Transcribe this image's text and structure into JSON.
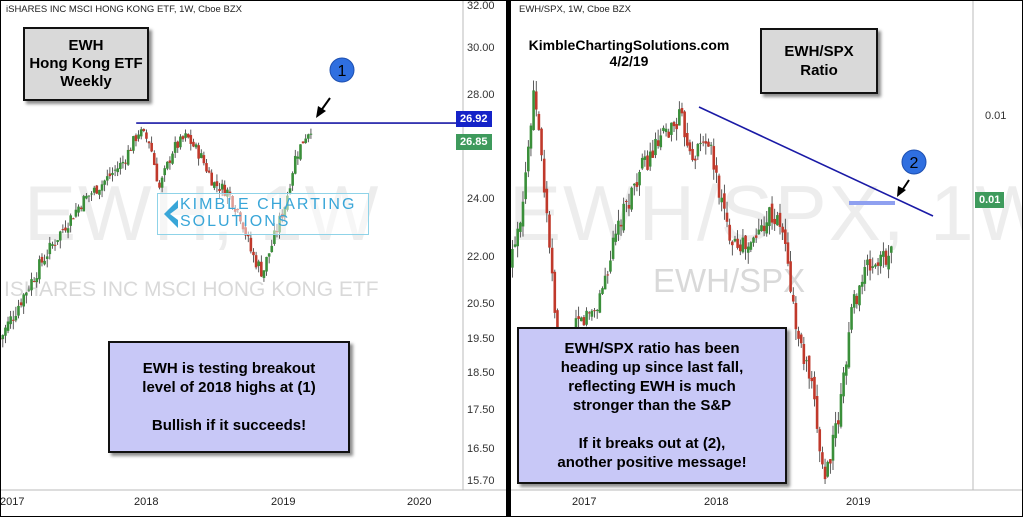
{
  "left": {
    "header": "iSHARES INC MSCI HONG KONG ETF, 1W, Cboe BZX",
    "watermark": "EWH, 1W",
    "watermark_sub": "ISHARES INC MSCI HONG KONG ETF",
    "title_box": [
      "EWH",
      "Hong Kong ETF",
      "Weekly"
    ],
    "logo_line1": "KIMBLE CHARTING",
    "logo_line2": "SOLUTIONS",
    "note": [
      "EWH is testing breakout",
      "level of 2018 highs at (1)",
      "",
      "Bullish if it succeeds!"
    ],
    "marker": "1",
    "price_badge_blue": "26.92",
    "price_badge_green": "26.85",
    "y_ticks": [
      "32.00",
      "30.00",
      "28.00",
      "24.00",
      "22.00",
      "20.50",
      "19.50",
      "18.50",
      "17.50",
      "16.50",
      "15.70"
    ],
    "x_ticks": [
      "2017",
      "2018",
      "2019",
      "2020"
    ]
  },
  "right": {
    "header": "EWH/SPX, 1W, Cboe BZX",
    "byline": [
      "KimbleChartingSolutions.com",
      "4/2/19"
    ],
    "watermark": "EWH/SPX, 1W",
    "watermark_mid": "EWH/SPX",
    "title_box": [
      "EWH/SPX",
      "Ratio"
    ],
    "note": [
      "EWH/SPX ratio has been",
      "heading up since last fall,",
      "reflecting EWH is much",
      "stronger than the S&P",
      "",
      "If it breaks out at (2),",
      "another positive message!"
    ],
    "marker": "2",
    "price_badge_green": "0.01",
    "y_ticks": [
      "0.01"
    ],
    "x_ticks": [
      "2017",
      "2018",
      "2019"
    ]
  },
  "colors": {
    "up": "#3a8f3a",
    "down": "#c0392b",
    "trendline": "#1a1aa6",
    "marker": "#2f6fe0",
    "badge_blue": "#1523c8",
    "badge_green": "#3e9a5c",
    "note_bg": "#c8c8f7",
    "title_bg": "#d9d9d9"
  },
  "chart_data": [
    {
      "type": "candlestick",
      "title": "iSHARES INC MSCI HONG KONG ETF, 1W, Cboe BZX",
      "x_ticks": [
        "2017",
        "2018",
        "2019",
        "2020"
      ],
      "y_ticks": [
        32.0,
        30.0,
        28.0,
        24.0,
        22.0,
        20.5,
        19.5,
        18.5,
        17.5,
        16.5,
        15.7
      ],
      "close_path": [
        {
          "x": 2016.95,
          "y": 19.5
        },
        {
          "x": 2017.1,
          "y": 20.6
        },
        {
          "x": 2017.25,
          "y": 21.8
        },
        {
          "x": 2017.4,
          "y": 22.9
        },
        {
          "x": 2017.55,
          "y": 23.9
        },
        {
          "x": 2017.7,
          "y": 24.6
        },
        {
          "x": 2017.85,
          "y": 25.4
        },
        {
          "x": 2017.97,
          "y": 26.6
        },
        {
          "x": 2018.05,
          "y": 26.2
        },
        {
          "x": 2018.12,
          "y": 24.4
        },
        {
          "x": 2018.22,
          "y": 25.9
        },
        {
          "x": 2018.32,
          "y": 26.4
        },
        {
          "x": 2018.42,
          "y": 25.7
        },
        {
          "x": 2018.52,
          "y": 24.6
        },
        {
          "x": 2018.62,
          "y": 24.3
        },
        {
          "x": 2018.72,
          "y": 23.4
        },
        {
          "x": 2018.8,
          "y": 22.1
        },
        {
          "x": 2018.88,
          "y": 21.5
        },
        {
          "x": 2018.96,
          "y": 22.6
        },
        {
          "x": 2019.05,
          "y": 23.9
        },
        {
          "x": 2019.12,
          "y": 25.6
        },
        {
          "x": 2019.2,
          "y": 26.5
        },
        {
          "x": 2019.25,
          "y": 26.85
        }
      ],
      "resistance": 26.92,
      "last_price": 26.85
    },
    {
      "type": "candlestick",
      "title": "EWH/SPX, 1W, Cboe BZX",
      "x_ticks": [
        "2017",
        "2018",
        "2019"
      ],
      "y_ticks": [
        0.01
      ],
      "close_path_relative": [
        {
          "x": 2016.45,
          "y": 0.45
        },
        {
          "x": 2016.55,
          "y": 0.6
        },
        {
          "x": 2016.65,
          "y": 0.92
        },
        {
          "x": 2016.75,
          "y": 0.55
        },
        {
          "x": 2016.85,
          "y": 0.05
        },
        {
          "x": 2016.95,
          "y": 0.3
        },
        {
          "x": 2017.1,
          "y": 0.35
        },
        {
          "x": 2017.25,
          "y": 0.55
        },
        {
          "x": 2017.4,
          "y": 0.7
        },
        {
          "x": 2017.55,
          "y": 0.78
        },
        {
          "x": 2017.7,
          "y": 0.85
        },
        {
          "x": 2017.8,
          "y": 0.75
        },
        {
          "x": 2017.9,
          "y": 0.8
        },
        {
          "x": 2018.05,
          "y": 0.55
        },
        {
          "x": 2018.2,
          "y": 0.5
        },
        {
          "x": 2018.35,
          "y": 0.6
        },
        {
          "x": 2018.45,
          "y": 0.55
        },
        {
          "x": 2018.55,
          "y": 0.28
        },
        {
          "x": 2018.65,
          "y": 0.15
        },
        {
          "x": 2018.75,
          "y": -0.1
        },
        {
          "x": 2018.85,
          "y": 0.05
        },
        {
          "x": 2018.95,
          "y": 0.35
        },
        {
          "x": 2019.05,
          "y": 0.45
        },
        {
          "x": 2019.15,
          "y": 0.47
        },
        {
          "x": 2019.25,
          "y": 0.5
        }
      ],
      "last_value": 0.01
    }
  ]
}
